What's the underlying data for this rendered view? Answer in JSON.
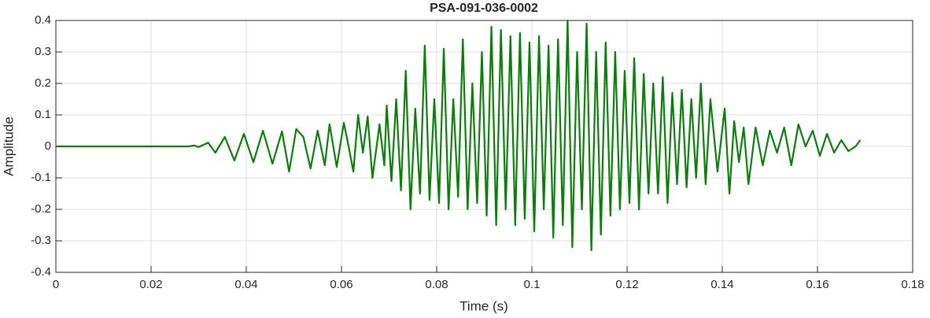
{
  "chart_data": {
    "type": "line",
    "title": "PSA-091-036-0002",
    "x_label": "Time (s)",
    "y_label": "Amplitude",
    "x": [
      0,
      0.028,
      0.029,
      0.03,
      0.032,
      0.0335,
      0.0355,
      0.0375,
      0.0395,
      0.0415,
      0.0435,
      0.0455,
      0.0475,
      0.049,
      0.0505,
      0.052,
      0.0535,
      0.055,
      0.0565,
      0.0575,
      0.059,
      0.0605,
      0.0615,
      0.0625,
      0.0635,
      0.0645,
      0.0655,
      0.0665,
      0.068,
      0.069,
      0.0695,
      0.0705,
      0.0715,
      0.0725,
      0.0735,
      0.0745,
      0.0755,
      0.0765,
      0.0775,
      0.0785,
      0.0795,
      0.0805,
      0.0815,
      0.0825,
      0.0835,
      0.0845,
      0.0855,
      0.0865,
      0.0875,
      0.0885,
      0.0895,
      0.0905,
      0.0915,
      0.0925,
      0.0935,
      0.0945,
      0.0955,
      0.0965,
      0.0975,
      0.0985,
      0.0995,
      0.1005,
      0.1015,
      0.1025,
      0.1035,
      0.1045,
      0.1055,
      0.1065,
      0.1075,
      0.1085,
      0.1095,
      0.1105,
      0.1115,
      0.1125,
      0.1135,
      0.1145,
      0.1155,
      0.1165,
      0.1175,
      0.1185,
      0.1195,
      0.1205,
      0.1215,
      0.1225,
      0.1235,
      0.1245,
      0.1255,
      0.1265,
      0.1275,
      0.1285,
      0.1295,
      0.1305,
      0.1315,
      0.1325,
      0.1335,
      0.1345,
      0.1355,
      0.1365,
      0.1375,
      0.139,
      0.1405,
      0.1415,
      0.1425,
      0.1435,
      0.1445,
      0.1455,
      0.147,
      0.1485,
      0.15,
      0.1515,
      0.153,
      0.1545,
      0.156,
      0.1575,
      0.159,
      0.1605,
      0.162,
      0.1635,
      0.165,
      0.1665,
      0.168,
      0.169
    ],
    "series": [
      {
        "color": "#0a7d0a",
        "values": [
          0,
          0,
          0.003,
          -0.002,
          0.012,
          -0.02,
          0.03,
          -0.045,
          0.04,
          -0.05,
          0.05,
          -0.055,
          0.048,
          -0.08,
          0.055,
          0.03,
          -0.07,
          0.05,
          -0.06,
          0.07,
          -0.065,
          0.075,
          0,
          -0.08,
          0.1,
          -0.02,
          0.095,
          -0.1,
          0.07,
          -0.06,
          0.13,
          -0.11,
          0.15,
          -0.14,
          0.24,
          -0.2,
          0.12,
          -0.15,
          0.32,
          -0.17,
          0.15,
          -0.18,
          0.31,
          -0.2,
          0.15,
          -0.16,
          0.34,
          -0.2,
          0.2,
          -0.18,
          0.3,
          -0.22,
          0.38,
          -0.25,
          0.37,
          -0.2,
          0.35,
          -0.25,
          0.36,
          -0.23,
          0.33,
          -0.27,
          0.35,
          -0.2,
          0.32,
          -0.29,
          0.34,
          -0.25,
          0.4,
          -0.32,
          0.3,
          -0.2,
          0.39,
          -0.33,
          0.3,
          -0.28,
          0.33,
          -0.22,
          0.3,
          -0.2,
          0.24,
          -0.18,
          0.28,
          -0.2,
          0.23,
          -0.15,
          0.2,
          -0.15,
          0.22,
          -0.18,
          0.17,
          -0.12,
          0.18,
          -0.13,
          0.15,
          -0.1,
          0.2,
          -0.12,
          0.15,
          -0.08,
          0.12,
          -0.15,
          0.08,
          -0.05,
          0.06,
          -0.12,
          0.06,
          -0.06,
          0.05,
          -0.02,
          0.06,
          -0.06,
          0.07,
          0,
          0.05,
          -0.03,
          0.04,
          -0.02,
          0.02,
          -0.015,
          0,
          0.02
        ]
      }
    ],
    "xlim": [
      0,
      0.18
    ],
    "xticks": [
      0,
      0.02,
      0.04,
      0.06,
      0.08,
      0.1,
      0.12,
      0.14,
      0.16,
      0.18
    ],
    "ylim": [
      -0.4,
      0.4
    ],
    "yticks": [
      -0.4,
      -0.3,
      -0.2,
      -0.1,
      0,
      0.1,
      0.2,
      0.3,
      0.4
    ],
    "grid": true
  }
}
